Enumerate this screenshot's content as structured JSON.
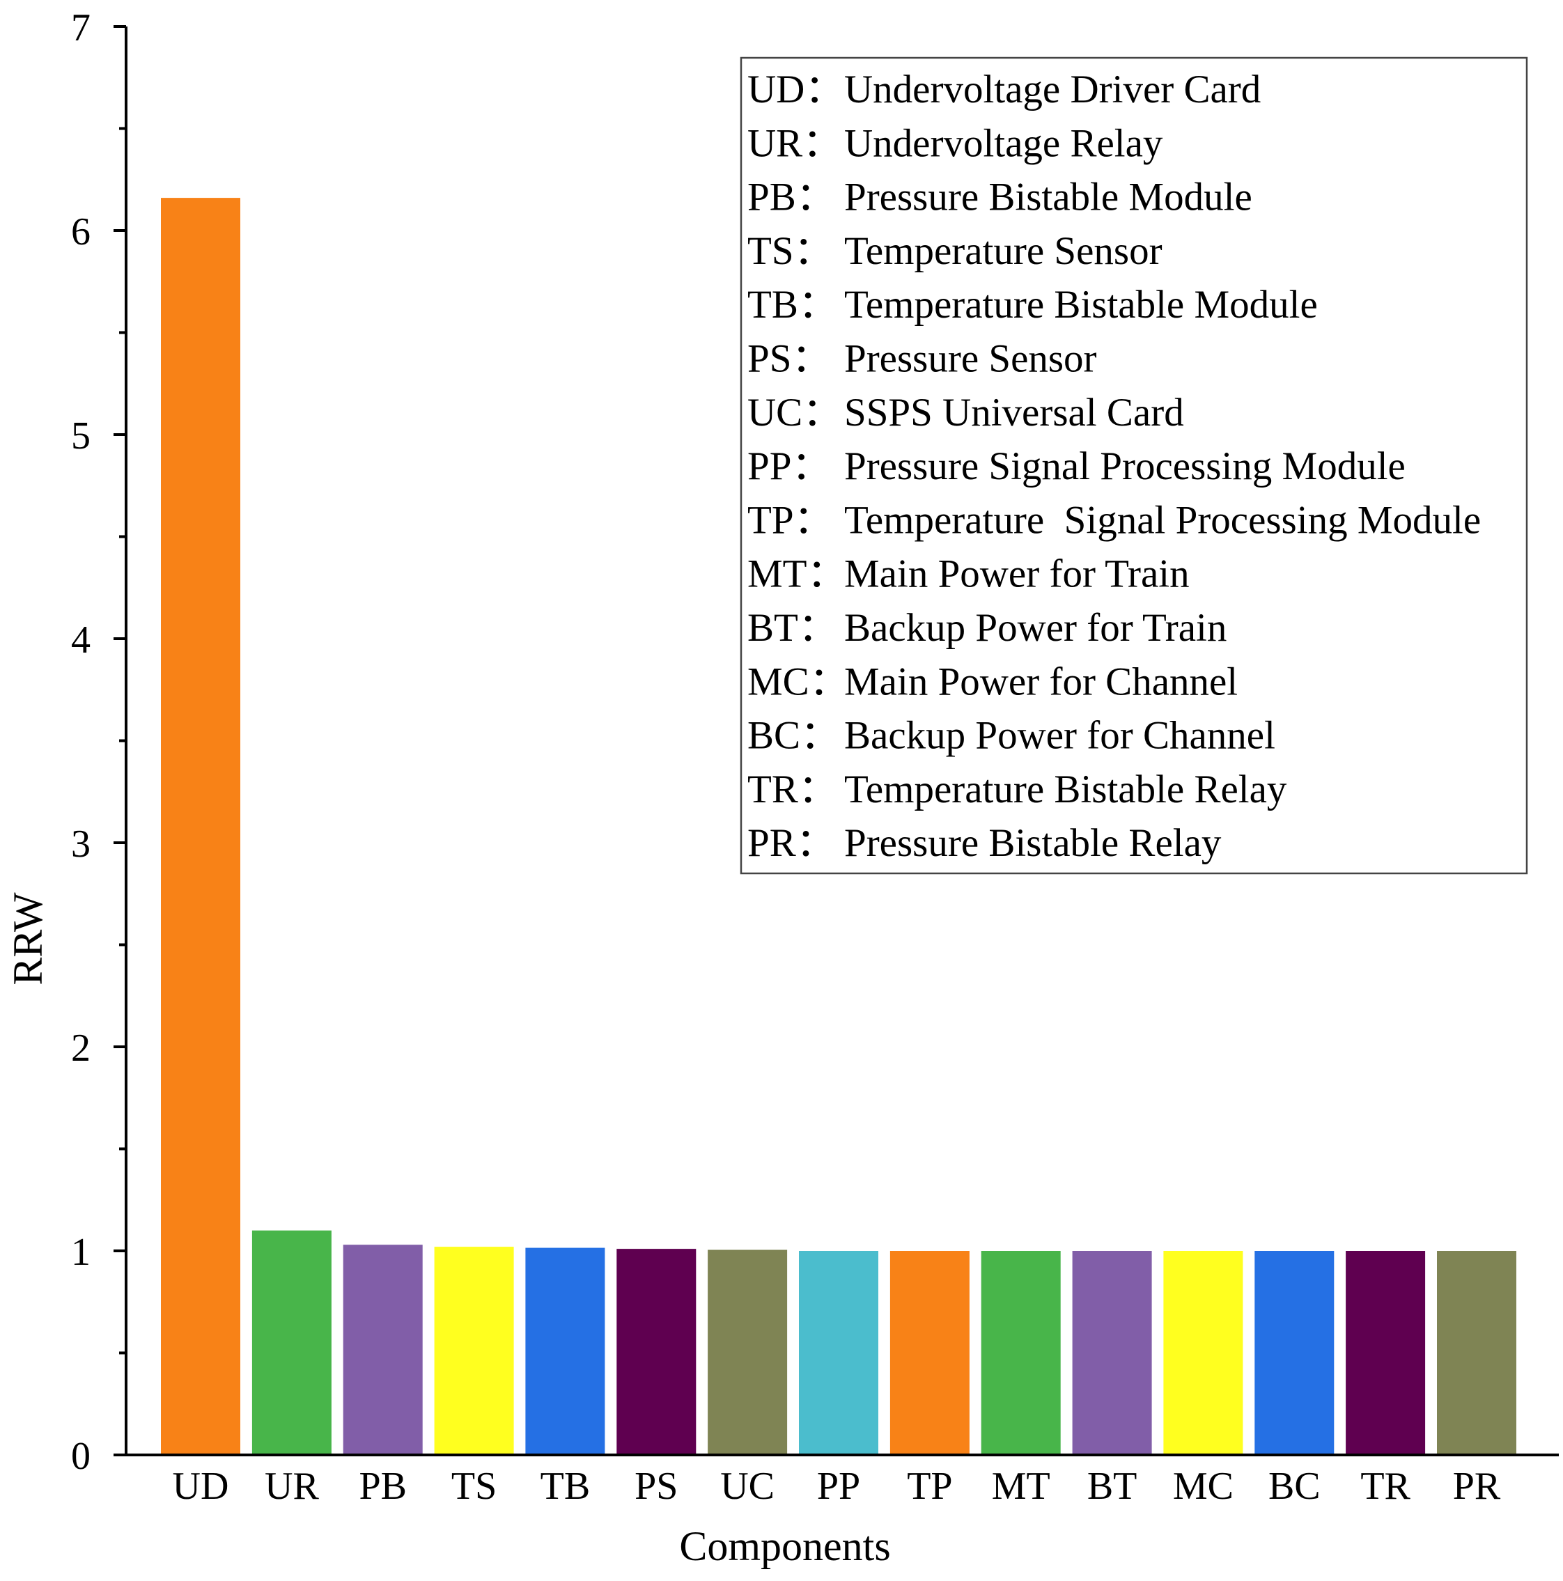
{
  "chart_data": {
    "type": "bar",
    "title": "",
    "xlabel": "Components",
    "ylabel": "RRW",
    "ylim": [
      0,
      7
    ],
    "yticks": [
      0,
      1,
      2,
      3,
      4,
      5,
      6,
      7
    ],
    "categories": [
      "UD",
      "UR",
      "PB",
      "TS",
      "TB",
      "PS",
      "UC",
      "PP",
      "TP",
      "MT",
      "BT",
      "MC",
      "BC",
      "TR",
      "PR"
    ],
    "values": [
      6.16,
      1.1,
      1.03,
      1.02,
      1.015,
      1.01,
      1.005,
      1.0,
      1.0,
      1.0,
      1.0,
      1.0,
      1.0,
      1.0,
      1.0
    ],
    "colors": [
      "#F88217",
      "#48B54A",
      "#815EA8",
      "#FFFF1F",
      "#2570E4",
      "#5F0050",
      "#7F8454",
      "#4BBDCD",
      "#F88217",
      "#48B54A",
      "#815EA8",
      "#FFFF1F",
      "#2570E4",
      "#5F0050",
      "#7F8454"
    ],
    "legend_placement": "top-right",
    "legend": [
      {
        "abbr": "UD：",
        "name": "Undervoltage Driver Card"
      },
      {
        "abbr": "UR：",
        "name": "Undervoltage Relay"
      },
      {
        "abbr": "PB：",
        "name": "Pressure Bistable Module"
      },
      {
        "abbr": "TS：",
        "name": "Temperature Sensor"
      },
      {
        "abbr": "TB：",
        "name": "Temperature Bistable Module"
      },
      {
        "abbr": "PS：",
        "name": "Pressure Sensor"
      },
      {
        "abbr": "UC：",
        "name": "SSPS Universal Card"
      },
      {
        "abbr": "PP：",
        "name": "Pressure Signal Processing Module"
      },
      {
        "abbr": "TP：",
        "name": "Temperature  Signal Processing Module"
      },
      {
        "abbr": "MT：",
        "name": "Main Power for Train"
      },
      {
        "abbr": "BT：",
        "name": "Backup Power for Train"
      },
      {
        "abbr": "MC：",
        "name": "Main Power for Channel"
      },
      {
        "abbr": "BC：",
        "name": "Backup Power for Channel"
      },
      {
        "abbr": "TR：",
        "name": "Temperature Bistable Relay"
      },
      {
        "abbr": "PR：",
        "name": "Pressure Bistable Relay"
      }
    ]
  }
}
